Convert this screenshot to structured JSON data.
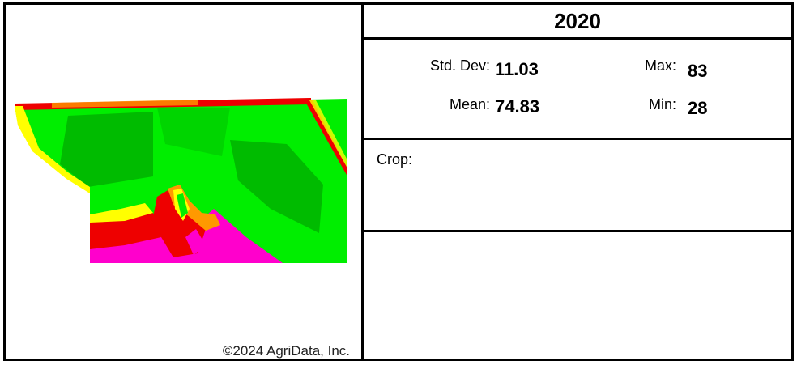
{
  "year": "2020",
  "stats": {
    "std_dev_label": "Std. Dev:",
    "std_dev_value": "11.03",
    "mean_label": "Mean:",
    "mean_value": "74.83",
    "max_label": "Max:",
    "max_value": "83",
    "min_label": "Min:",
    "min_value": "28"
  },
  "crop_label": "Crop:",
  "copyright": "©2024 AgriData, Inc.",
  "colors": {
    "bright_green": "#00ee00",
    "dark_green": "#00aa00",
    "yellow": "#ffff00",
    "orange": "#ff9900",
    "red": "#ee0000",
    "magenta": "#ff00cc"
  }
}
